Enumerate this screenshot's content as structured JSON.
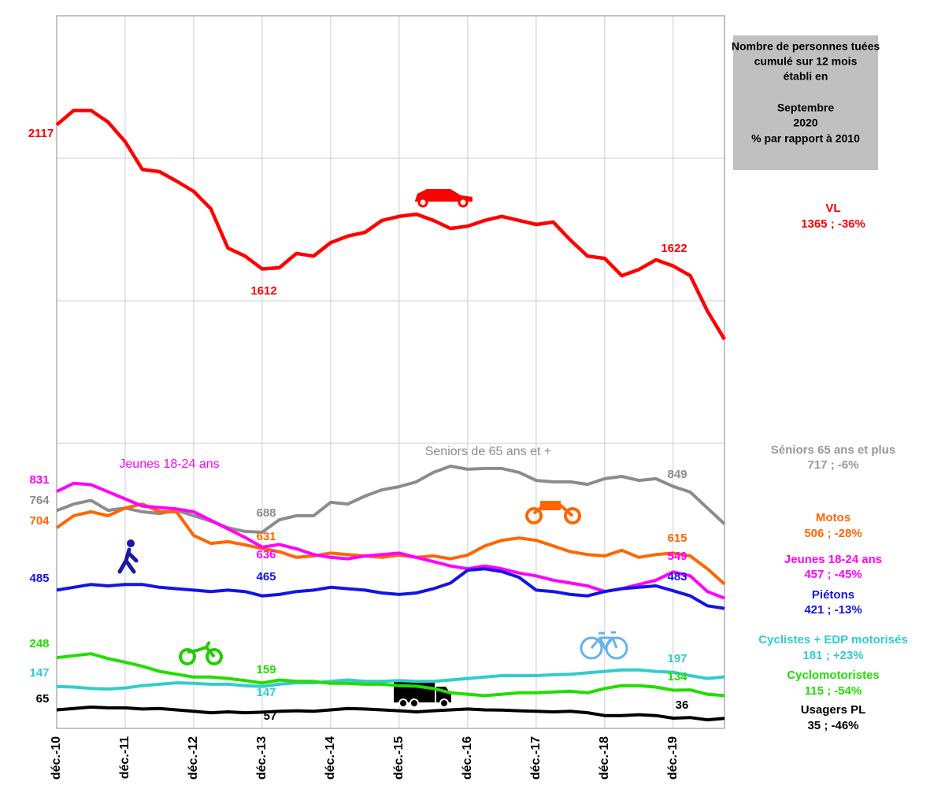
{
  "chart_data": {
    "type": "line",
    "box": [
      "Nombre de personnes tuées",
      "cumulé sur 12 mois",
      "établi en",
      "Septembre",
      "2020",
      "% par rapport à 2010"
    ],
    "categories": [
      "déc.-10",
      null,
      null,
      null,
      "déc.-11",
      null,
      null,
      null,
      "déc.-12",
      null,
      null,
      null,
      "déc.-13",
      null,
      null,
      null,
      "déc.-14",
      null,
      null,
      null,
      "déc.-15",
      null,
      null,
      null,
      "déc.-16",
      null,
      null,
      null,
      "déc.-17",
      null,
      null,
      null,
      "déc.-18",
      null,
      null,
      null,
      "déc.-19",
      null,
      null,
      null
    ],
    "ylim": [
      0,
      2500
    ],
    "yticks": [
      1000,
      1500,
      2000
    ],
    "grid": true,
    "annotations": [
      {
        "text": "Jeunes 18-24 ans",
        "color": "#ff00ff"
      },
      {
        "text": "Seniors de 65 ans et +",
        "color": "#8c8c8c"
      }
    ],
    "series": [
      {
        "name": "VL",
        "summary": "1365 ; -36%",
        "color": "#ff0000",
        "values": [
          2117,
          2168,
          2168,
          2127,
          2058,
          1961,
          1953,
          1920,
          1884,
          1823,
          1685,
          1657,
          1612,
          1616,
          1666,
          1657,
          1704,
          1727,
          1740,
          1782,
          1796,
          1804,
          1782,
          1754,
          1762,
          1782,
          1796,
          1782,
          1768,
          1776,
          1713,
          1657,
          1649,
          1588,
          1610,
          1644,
          1622,
          1588,
          1464,
          1365
        ]
      },
      {
        "name": "Séniors 65 ans et plus",
        "summary": "717 ; -6%",
        "color": "#8c8c8c",
        "values": [
          764,
          787,
          800,
          765,
          773,
          760,
          754,
          765,
          746,
          727,
          704,
          691,
          688,
          732,
          746,
          746,
          793,
          787,
          815,
          837,
          848,
          865,
          898,
          920,
          909,
          912,
          912,
          898,
          870,
          865,
          865,
          856,
          876,
          884,
          870,
          876,
          849,
          829,
          773,
          717
        ]
      },
      {
        "name": "Motos",
        "summary": "506 ; -28%",
        "color": "#ff6600",
        "values": [
          704,
          746,
          760,
          746,
          773,
          787,
          760,
          760,
          677,
          649,
          655,
          644,
          631,
          620,
          600,
          605,
          615,
          610,
          605,
          600,
          608,
          600,
          605,
          595,
          608,
          640,
          660,
          668,
          660,
          640,
          620,
          610,
          605,
          625,
          600,
          610,
          615,
          605,
          560,
          506
        ]
      },
      {
        "name": "Jeunes 18-24 ans",
        "summary": "457 ; -45%",
        "color": "#ff00ff",
        "values": [
          831,
          860,
          855,
          830,
          805,
          780,
          775,
          770,
          760,
          730,
          700,
          670,
          636,
          645,
          630,
          610,
          600,
          595,
          605,
          610,
          615,
          600,
          585,
          570,
          560,
          570,
          560,
          545,
          535,
          520,
          510,
          500,
          480,
          490,
          505,
          520,
          549,
          535,
          480,
          457
        ]
      },
      {
        "name": "Piétons",
        "summary": "421 ; -13%",
        "color": "#1414e6",
        "values": [
          485,
          495,
          505,
          500,
          505,
          505,
          495,
          490,
          485,
          480,
          485,
          480,
          465,
          470,
          480,
          485,
          495,
          490,
          485,
          475,
          470,
          475,
          490,
          510,
          555,
          560,
          550,
          530,
          485,
          480,
          470,
          465,
          480,
          490,
          495,
          500,
          483,
          465,
          430,
          421
        ]
      },
      {
        "name": "Cyclistes + EDP motorisés",
        "summary": "181 ; +23%",
        "color": "#33cccc",
        "values": [
          147,
          145,
          140,
          138,
          142,
          150,
          155,
          160,
          158,
          155,
          155,
          150,
          147,
          155,
          160,
          160,
          165,
          170,
          165,
          165,
          168,
          165,
          165,
          170,
          175,
          180,
          185,
          185,
          185,
          188,
          190,
          195,
          200,
          205,
          205,
          200,
          197,
          185,
          175,
          181
        ]
      },
      {
        "name": "Cyclomotoristes",
        "summary": "115 ; -54%",
        "color": "#22dd00",
        "values": [
          248,
          255,
          262,
          245,
          232,
          218,
          200,
          190,
          180,
          180,
          175,
          168,
          159,
          170,
          165,
          165,
          158,
          158,
          155,
          155,
          150,
          148,
          140,
          125,
          120,
          115,
          120,
          125,
          125,
          128,
          130,
          125,
          140,
          150,
          150,
          145,
          134,
          135,
          120,
          115
        ]
      },
      {
        "name": "Usagers PL",
        "summary": "35 ; -46%",
        "color": "#000000",
        "values": [
          65,
          70,
          75,
          72,
          72,
          68,
          70,
          65,
          60,
          55,
          58,
          55,
          57,
          60,
          62,
          60,
          65,
          70,
          68,
          65,
          62,
          58,
          62,
          65,
          68,
          65,
          64,
          62,
          60,
          58,
          60,
          55,
          45,
          45,
          48,
          45,
          36,
          38,
          30,
          35
        ]
      }
    ]
  }
}
